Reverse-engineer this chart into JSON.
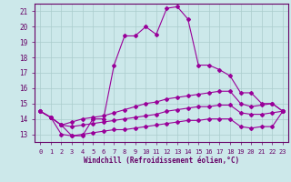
{
  "xlabel": "Windchill (Refroidissement éolien,°C)",
  "x_values": [
    0,
    1,
    2,
    3,
    4,
    5,
    6,
    7,
    8,
    9,
    10,
    11,
    12,
    13,
    14,
    15,
    16,
    17,
    18,
    19,
    20,
    21,
    22,
    23
  ],
  "line1": [
    14.5,
    14.1,
    13.6,
    12.9,
    12.9,
    14.0,
    14.0,
    17.5,
    19.4,
    19.4,
    20.0,
    19.5,
    21.2,
    21.3,
    20.5,
    17.5,
    17.5,
    17.2,
    16.8,
    15.7,
    15.7,
    15.0,
    15.0,
    14.5
  ],
  "line2": [
    14.5,
    14.1,
    13.6,
    13.8,
    14.0,
    14.1,
    14.2,
    14.4,
    14.6,
    14.8,
    15.0,
    15.1,
    15.3,
    15.4,
    15.5,
    15.6,
    15.7,
    15.8,
    15.8,
    15.0,
    14.8,
    14.9,
    15.0,
    14.5
  ],
  "line3": [
    14.5,
    14.1,
    13.6,
    13.5,
    13.6,
    13.7,
    13.8,
    13.9,
    14.0,
    14.1,
    14.2,
    14.3,
    14.5,
    14.6,
    14.7,
    14.8,
    14.8,
    14.9,
    14.9,
    14.4,
    14.3,
    14.3,
    14.4,
    14.5
  ],
  "line4": [
    14.5,
    14.1,
    13.0,
    12.9,
    13.0,
    13.1,
    13.2,
    13.3,
    13.3,
    13.4,
    13.5,
    13.6,
    13.7,
    13.8,
    13.9,
    13.9,
    14.0,
    14.0,
    14.0,
    13.5,
    13.4,
    13.5,
    13.5,
    14.5
  ],
  "line_color": "#990099",
  "bg_color": "#cce8ea",
  "grid_color": "#aacccc",
  "text_color": "#660066",
  "spine_color": "#660066",
  "ylim": [
    12.5,
    21.5
  ],
  "xlim": [
    -0.5,
    23.5
  ],
  "yticks": [
    13,
    14,
    15,
    16,
    17,
    18,
    19,
    20,
    21
  ],
  "xticks": [
    0,
    1,
    2,
    3,
    4,
    5,
    6,
    7,
    8,
    9,
    10,
    11,
    12,
    13,
    14,
    15,
    16,
    17,
    18,
    19,
    20,
    21,
    22,
    23
  ]
}
